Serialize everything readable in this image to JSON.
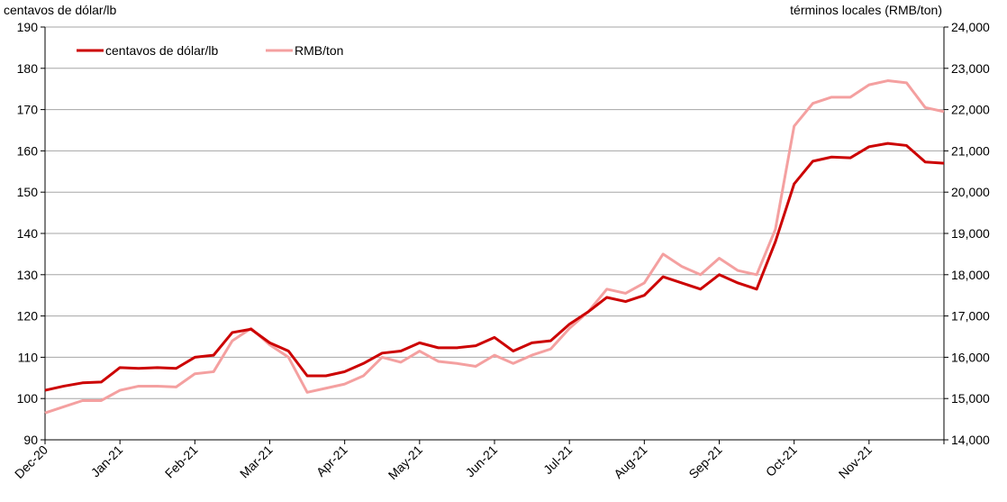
{
  "chart_data": {
    "type": "line",
    "y_label": "centavos de dólar/lb",
    "y2_label": "términos locales (RMB/ton)",
    "categories": [
      "Dec-20",
      null,
      null,
      null,
      "Jan-21",
      null,
      null,
      null,
      "Feb-21",
      null,
      null,
      null,
      "Mar-21",
      null,
      null,
      null,
      "Apr-21",
      null,
      null,
      null,
      "May-21",
      null,
      null,
      null,
      "Jun-21",
      null,
      null,
      null,
      "Jul-21",
      null,
      null,
      null,
      "Aug-21",
      null,
      null,
      null,
      "Sep-21",
      null,
      null,
      null,
      "Oct-21",
      null,
      null,
      null,
      "Nov-21",
      null,
      null,
      null,
      null
    ],
    "series": [
      {
        "name": "centavos de dólar/lb",
        "color": "#cc0000",
        "values": [
          102,
          103,
          103.8,
          104,
          107.5,
          107.3,
          107.5,
          107.3,
          110,
          110.5,
          116,
          116.8,
          113.5,
          111.5,
          105.5,
          105.5,
          106.5,
          108.5,
          111,
          111.5,
          113.5,
          112.3,
          112.3,
          112.8,
          114.8,
          111.5,
          113.5,
          114,
          118,
          121,
          124.5,
          123.5,
          125,
          129.5,
          128,
          126.5,
          130,
          128,
          126.5,
          138,
          152,
          157.5,
          158.5,
          158.3,
          161,
          161.8,
          161.3,
          157.3,
          157
        ]
      },
      {
        "name": "RMB/ton",
        "color": "#f4a0a0",
        "axis": "y2",
        "values": [
          14650,
          14800,
          14950,
          14950,
          15200,
          15300,
          15300,
          15280,
          15600,
          15650,
          16400,
          16700,
          16300,
          16000,
          15150,
          15250,
          15350,
          15550,
          16000,
          15880,
          16150,
          15900,
          15850,
          15780,
          16050,
          15850,
          16050,
          16200,
          16700,
          17100,
          17650,
          17550,
          17800,
          18500,
          18200,
          18000,
          18400,
          18100,
          18000,
          19100,
          21600,
          22150,
          22300,
          22300,
          22600,
          22700,
          22650,
          22050,
          21950
        ]
      }
    ],
    "ylim": [
      90,
      190
    ],
    "yticks": [
      90,
      100,
      110,
      120,
      130,
      140,
      150,
      160,
      170,
      180,
      190
    ],
    "y2lim": [
      14000,
      24000
    ],
    "y2ticks": [
      {
        "value": 14000,
        "label": "14,000"
      },
      {
        "value": 15000,
        "label": "15,000"
      },
      {
        "value": 16000,
        "label": "16,000"
      },
      {
        "value": 17000,
        "label": "17,000"
      },
      {
        "value": 18000,
        "label": "18,000"
      },
      {
        "value": 19000,
        "label": "19,000"
      },
      {
        "value": 20000,
        "label": "20,000"
      },
      {
        "value": 21000,
        "label": "21,000"
      },
      {
        "value": 22000,
        "label": "22,000"
      },
      {
        "value": 23000,
        "label": "23,000"
      },
      {
        "value": 24000,
        "label": "24,000"
      }
    ],
    "grid": true,
    "legend": "top-left"
  }
}
